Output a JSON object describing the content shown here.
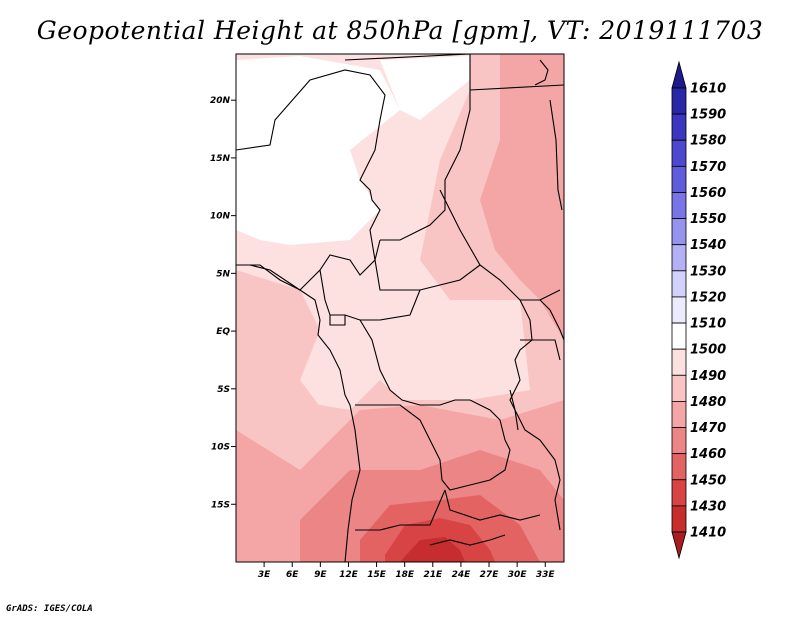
{
  "title": "Geopotential Height at 850hPa [gpm], VT: 2019111703",
  "credit": "GrADS: IGES/COLA",
  "map": {
    "lon_range": [
      0,
      35
    ],
    "lat_range": [
      -20,
      24
    ],
    "y_ticks": [
      "20N",
      "15N",
      "10N",
      "5N",
      "EQ",
      "5S",
      "10S",
      "15S"
    ],
    "y_tick_values": [
      20,
      15,
      10,
      5,
      0,
      -5,
      -10,
      -15
    ],
    "x_ticks": [
      "3E",
      "6E",
      "9E",
      "12E",
      "15E",
      "18E",
      "21E",
      "24E",
      "27E",
      "30E",
      "33E"
    ],
    "x_tick_values": [
      3,
      6,
      9,
      12,
      15,
      18,
      21,
      24,
      27,
      30,
      33
    ]
  },
  "colorbar": {
    "levels": [
      "1610",
      "1590",
      "1580",
      "1570",
      "1560",
      "1550",
      "1540",
      "1530",
      "1520",
      "1510",
      "1500",
      "1490",
      "1480",
      "1470",
      "1460",
      "1450",
      "1430",
      "1410"
    ],
    "colors": [
      "#1e1a8c",
      "#2a26a8",
      "#3a36bf",
      "#4c49cf",
      "#605ddc",
      "#7975e6",
      "#9693ee",
      "#b3b1f4",
      "#d2d1fa",
      "#ecebfd",
      "#ffffff",
      "#fde0e0",
      "#f9c4c4",
      "#f4a6a6",
      "#ec8585",
      "#e36363",
      "#d84444",
      "#c62d2d",
      "#a81d1d"
    ]
  }
}
